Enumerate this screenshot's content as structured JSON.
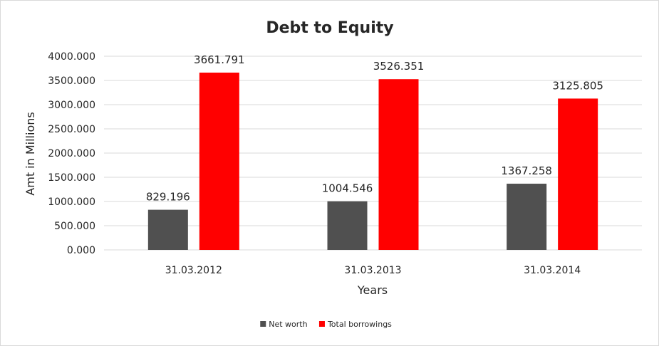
{
  "chart_data": {
    "type": "bar",
    "title": "Debt to Equity",
    "xlabel": "Years",
    "ylabel": "Amt in Millions",
    "categories": [
      "31.03.2012",
      "31.03.2013",
      "31.03.2014"
    ],
    "series": [
      {
        "name": "Net worth",
        "color": "#505050",
        "values": [
          829.196,
          1004.546,
          1367.258
        ],
        "labels": [
          "829.196",
          "1004.546",
          "1367.258"
        ]
      },
      {
        "name": "Total borrowings",
        "color": "#ff0000",
        "values": [
          3661.791,
          3526.351,
          3125.805
        ],
        "labels": [
          "3661.791",
          "3526.351",
          "3125.805"
        ]
      }
    ],
    "ylim": [
      0,
      4000
    ],
    "yticks": [
      0,
      500,
      1000,
      1500,
      2000,
      2500,
      3000,
      3500,
      4000
    ],
    "ytick_labels": [
      "0.000",
      "500.000",
      "1000.000",
      "1500.000",
      "2000.000",
      "2500.000",
      "3000.000",
      "3500.000",
      "4000.000"
    ],
    "grid": true,
    "legend": "bottom",
    "gridline_color": "#d9d9d9"
  }
}
